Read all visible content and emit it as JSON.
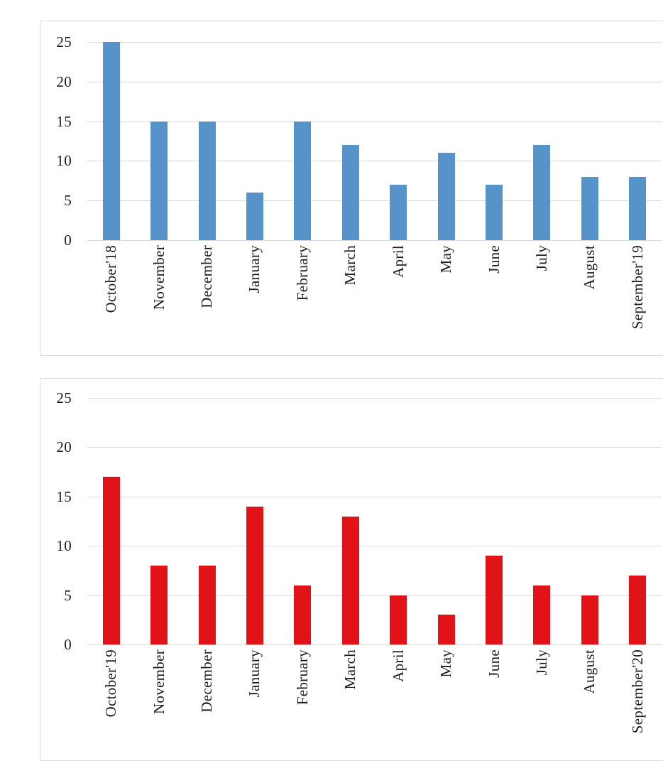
{
  "styles": {
    "background": "#FFFFFF",
    "panel_border_color": "#D9D9D9",
    "gridline_color": "#D9D9D9",
    "text_color": "#1B1B1B",
    "bar_color_top": "#5593C8",
    "bar_color_bottom": "#E21318"
  },
  "chart_data": [
    {
      "name": "bar-chart-oct18-sep19",
      "type": "bar",
      "title": "",
      "xlabel": "",
      "ylabel": "",
      "bar_color": "#5593C8",
      "categories": [
        "October'18",
        "November",
        "December",
        "January",
        "February",
        "March",
        "April",
        "May",
        "June",
        "July",
        "August",
        "September'19"
      ],
      "values": [
        25,
        15,
        15,
        6,
        15,
        12,
        7,
        11,
        7,
        12,
        8,
        8
      ],
      "y_ticks": [
        0,
        5,
        10,
        15,
        20,
        25
      ],
      "ylim": [
        0,
        25
      ],
      "grid": true,
      "legend": null,
      "category_label_rotation": "vertical-bottom-to-top"
    },
    {
      "name": "bar-chart-oct19-sep20",
      "type": "bar",
      "title": "",
      "xlabel": "",
      "ylabel": "",
      "bar_color": "#E21318",
      "categories": [
        "October'19",
        "November",
        "December",
        "January",
        "February",
        "March",
        "April",
        "May",
        "June",
        "July",
        "August",
        "September'20"
      ],
      "values": [
        17,
        8,
        8,
        14,
        6,
        13,
        5,
        3,
        9,
        6,
        5,
        7
      ],
      "y_ticks": [
        0,
        5,
        10,
        15,
        20,
        25
      ],
      "ylim": [
        0,
        25
      ],
      "grid": true,
      "legend": null,
      "category_label_rotation": "vertical-bottom-to-top"
    }
  ]
}
